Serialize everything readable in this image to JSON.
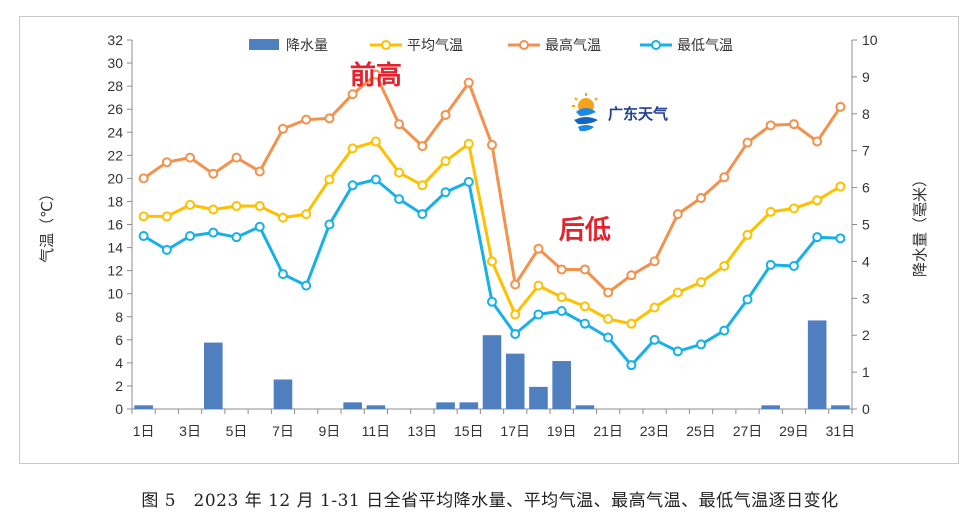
{
  "caption": "图 5　2023 年 12 月 1-31 日全省平均降水量、平均气温、最高气温、最低气温逐日变化",
  "logo_text": "广东天气",
  "colors": {
    "precip": "#4f7fbf",
    "avg": "#ffc000",
    "max": "#f3914d",
    "min": "#18b0e8",
    "axis": "#333333"
  },
  "chart_data": {
    "type": "bar+line",
    "categories": [
      "1日",
      "2日",
      "3日",
      "4日",
      "5日",
      "6日",
      "7日",
      "8日",
      "9日",
      "10日",
      "11日",
      "12日",
      "13日",
      "14日",
      "15日",
      "16日",
      "17日",
      "18日",
      "19日",
      "20日",
      "21日",
      "22日",
      "23日",
      "24日",
      "25日",
      "26日",
      "27日",
      "28日",
      "29日",
      "30日",
      "31日"
    ],
    "x_tick_labels": [
      "1日",
      "3日",
      "5日",
      "7日",
      "9日",
      "11日",
      "13日",
      "15日",
      "17日",
      "19日",
      "21日",
      "23日",
      "25日",
      "27日",
      "29日",
      "31日"
    ],
    "ylabel_left": "气温（℃）",
    "ylabel_right": "降水量（毫米）",
    "ylim_left": [
      0,
      32
    ],
    "yticks_left": [
      0,
      2,
      4,
      6,
      8,
      10,
      12,
      14,
      16,
      18,
      20,
      22,
      24,
      26,
      28,
      30,
      32
    ],
    "ylim_right": [
      0,
      10
    ],
    "yticks_right": [
      0,
      1,
      2,
      3,
      4,
      5,
      6,
      7,
      8,
      9,
      10
    ],
    "legend_position": "top",
    "bars": {
      "name": "降水量",
      "axis": "right",
      "values": [
        0.1,
        0,
        0,
        1.8,
        0,
        0,
        0.8,
        0,
        0,
        0.18,
        0.1,
        0,
        0,
        0.18,
        0.18,
        2.0,
        1.5,
        0.6,
        1.3,
        0.1,
        0,
        0,
        0,
        0,
        0,
        0,
        0,
        0.1,
        0,
        2.4,
        0.1
      ]
    },
    "series": [
      {
        "name": "平均气温",
        "axis": "left",
        "color_key": "avg",
        "values": [
          16.7,
          16.7,
          17.7,
          17.3,
          17.6,
          17.6,
          16.6,
          16.9,
          19.9,
          22.6,
          23.2,
          20.5,
          19.4,
          21.5,
          23.0,
          12.8,
          8.2,
          10.7,
          9.7,
          8.9,
          7.8,
          7.4,
          8.8,
          10.1,
          11.0,
          12.4,
          15.1,
          17.1,
          17.4,
          18.1,
          19.3
        ]
      },
      {
        "name": "最高气温",
        "axis": "left",
        "color_key": "max",
        "values": [
          20.0,
          21.4,
          21.8,
          20.4,
          21.8,
          20.6,
          24.3,
          25.1,
          25.2,
          27.3,
          29.0,
          24.7,
          22.8,
          25.5,
          28.3,
          22.9,
          10.8,
          13.9,
          12.1,
          12.1,
          10.1,
          11.6,
          12.8,
          16.9,
          18.3,
          20.1,
          23.1,
          24.6,
          24.7,
          23.2,
          26.2
        ]
      },
      {
        "name": "最低气温",
        "axis": "left",
        "color_key": "min",
        "values": [
          15.0,
          13.8,
          15.0,
          15.3,
          14.9,
          15.8,
          11.7,
          10.7,
          16.0,
          19.4,
          19.9,
          18.2,
          16.9,
          18.8,
          19.7,
          9.3,
          6.5,
          8.2,
          8.5,
          7.4,
          6.2,
          3.8,
          6.0,
          5.0,
          5.6,
          6.8,
          9.5,
          12.5,
          12.4,
          14.9,
          14.8
        ]
      }
    ],
    "annotations": [
      {
        "text": "前高",
        "at_day": 11,
        "at_value": 28.2,
        "color": "#e5212b"
      },
      {
        "text": "后低",
        "at_day": 20,
        "at_value": 14.8,
        "color": "#e5212b"
      }
    ]
  }
}
